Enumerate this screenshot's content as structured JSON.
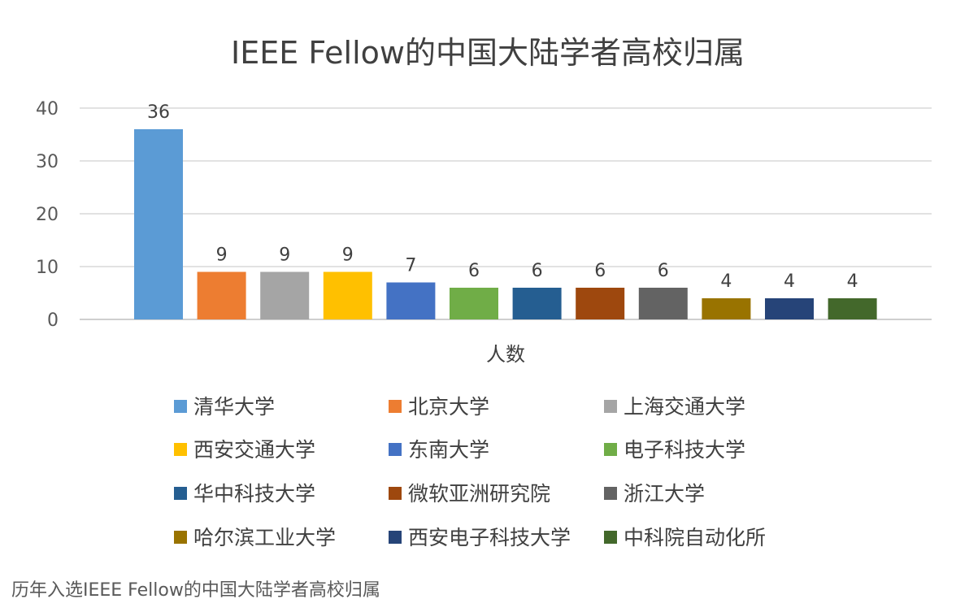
{
  "chart_data": {
    "type": "bar",
    "title": "IEEE Fellow的中国大陆学者高校归属",
    "xlabel": "人数",
    "ylabel": "",
    "ylim": [
      0,
      40
    ],
    "yticks": [
      0,
      10,
      20,
      30,
      40
    ],
    "grid": true,
    "legend_position": "bottom",
    "series": [
      {
        "name": "清华大学",
        "value": 36,
        "color": "#5B9BD5"
      },
      {
        "name": "北京大学",
        "value": 9,
        "color": "#ED7D31"
      },
      {
        "name": "上海交通大学",
        "value": 9,
        "color": "#A5A5A5"
      },
      {
        "name": "西安交通大学",
        "value": 9,
        "color": "#FFC000"
      },
      {
        "name": "东南大学",
        "value": 7,
        "color": "#4472C4"
      },
      {
        "name": "电子科技大学",
        "value": 6,
        "color": "#70AD47"
      },
      {
        "name": "华中科技大学",
        "value": 6,
        "color": "#255E91"
      },
      {
        "name": "微软亚洲研究院",
        "value": 6,
        "color": "#9E480E"
      },
      {
        "name": "浙江大学",
        "value": 6,
        "color": "#636363"
      },
      {
        "name": "哈尔滨工业大学",
        "value": 4,
        "color": "#997300"
      },
      {
        "name": "西安电子科技大学",
        "value": 4,
        "color": "#264478"
      },
      {
        "name": "中科院自动化所",
        "value": 4,
        "color": "#43682B"
      }
    ]
  },
  "caption": "历年入选IEEE Fellow的中国大陆学者高校归属"
}
